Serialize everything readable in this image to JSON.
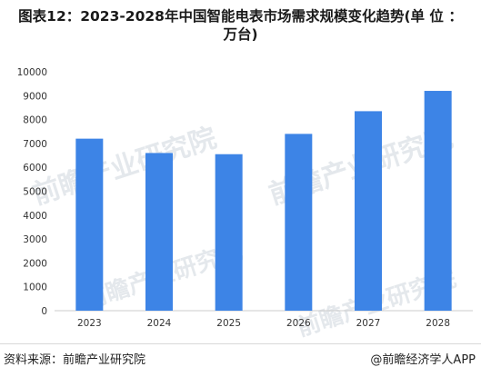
{
  "header": {
    "title_line1": "图表12：2023-2028年中国智能电表市场需求规模变化趋势(单 位 ：",
    "title_line2": "万台)"
  },
  "footer": {
    "source": "资料来源：前瞻产业研究院",
    "brand": "@前瞻经济学人APP"
  },
  "watermark": {
    "text": "前瞻产业研究院"
  },
  "colors": {
    "bar": "#3d84e6",
    "axis": "#cccccc",
    "watermark": "#cfd6de"
  },
  "chart_data": {
    "type": "bar",
    "categories": [
      "2023",
      "2024",
      "2025",
      "2026",
      "2027",
      "2028"
    ],
    "values": [
      7200,
      6600,
      6550,
      7400,
      8350,
      9200
    ],
    "title": "图表12：2023-2028年中国智能电表市场需求规模变化趋势(单 位 ：万台)",
    "xlabel": "",
    "ylabel": "",
    "ylim": [
      0,
      10000
    ],
    "yticks": [
      0,
      1000,
      2000,
      3000,
      4000,
      5000,
      6000,
      7000,
      8000,
      9000,
      10000
    ],
    "grid": false,
    "legend": "none"
  }
}
